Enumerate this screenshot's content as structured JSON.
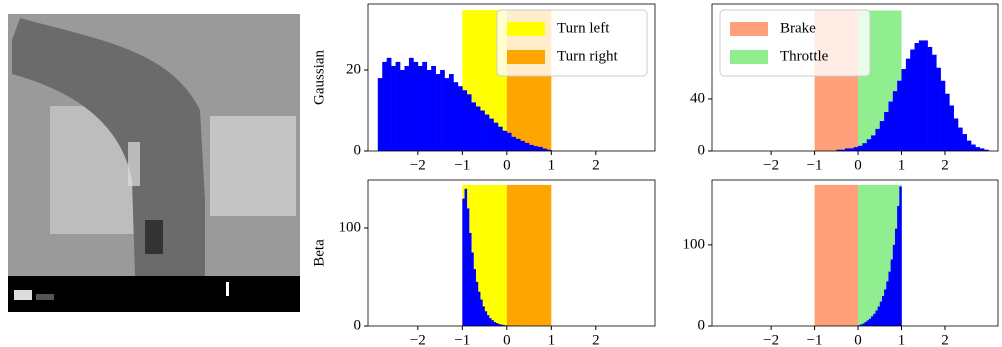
{
  "chart_data": [
    {
      "type": "histogram",
      "ylabel": "Gaussian",
      "color": "#0000ff",
      "legend": "upper right",
      "xlim": [
        -3.12,
        3.33
      ],
      "ylim": [
        0,
        36.3
      ],
      "xticks": [
        {
          "value": -2,
          "label": "−2"
        },
        {
          "value": -1,
          "label": "−1"
        },
        0,
        1,
        2
      ],
      "yticks": [
        0,
        20
      ],
      "spans": [
        {
          "name": "Turn left",
          "color": "#ffff00",
          "span": [
            -1,
            0
          ],
          "height": 34.8
        },
        {
          "name": "Turn right",
          "color": "#ffa500",
          "span": [
            0,
            1
          ],
          "height": 34.8
        }
      ],
      "bins": [
        -2.9,
        -2.8,
        -2.7,
        -2.6,
        -2.5,
        -2.4,
        -2.3,
        -2.2,
        -2.1,
        -2.0,
        -1.9,
        -1.8,
        -1.7,
        -1.6,
        -1.5,
        -1.4,
        -1.3,
        -1.2,
        -1.1,
        -1.0,
        -0.9,
        -0.8,
        -0.7,
        -0.6,
        -0.5,
        -0.4,
        -0.3,
        -0.2,
        -0.1,
        0.0,
        0.1,
        0.2,
        0.3,
        0.4,
        0.5,
        0.6,
        0.7,
        0.8,
        0.9,
        1.0
      ],
      "counts": [
        18,
        22,
        23,
        21,
        22,
        20,
        21,
        23,
        22,
        21,
        22,
        20,
        21,
        19,
        20,
        18,
        19,
        17,
        16,
        15,
        14,
        12,
        11,
        10,
        9,
        8,
        7,
        6,
        5,
        4.5,
        3.5,
        3,
        2.5,
        2,
        1.5,
        1.2,
        1,
        0.6,
        0.3
      ]
    },
    {
      "type": "histogram",
      "color": "#0000ff",
      "legend": "upper left",
      "xlim": [
        -3.36,
        3.22
      ],
      "ylim": [
        0,
        113
      ],
      "xticks": [
        {
          "value": -2,
          "label": "−2"
        },
        {
          "value": -1,
          "label": "−1"
        },
        0,
        1,
        2
      ],
      "yticks": [
        0,
        40
      ],
      "spans": [
        {
          "name": "Brake",
          "color": "#ffa07a",
          "span": [
            -1,
            0
          ],
          "height": 108
        },
        {
          "name": "Throttle",
          "color": "#90ee90",
          "span": [
            0,
            1
          ],
          "height": 108
        }
      ],
      "bins": [
        -0.5,
        -0.4,
        -0.3,
        -0.2,
        -0.1,
        0.0,
        0.1,
        0.2,
        0.3,
        0.4,
        0.5,
        0.6,
        0.7,
        0.8,
        0.9,
        1.0,
        1.1,
        1.2,
        1.3,
        1.4,
        1.5,
        1.6,
        1.7,
        1.8,
        1.9,
        2.0,
        2.1,
        2.2,
        2.3,
        2.4,
        2.5,
        2.6,
        2.7,
        2.8,
        2.9,
        3.0
      ],
      "counts": [
        1,
        1,
        2,
        2,
        3,
        4,
        6,
        9,
        12,
        17,
        23,
        30,
        38,
        46,
        54,
        63,
        71,
        78,
        83,
        85,
        85,
        80,
        74,
        64,
        54,
        44,
        35,
        25,
        18,
        13,
        8,
        5,
        3,
        2,
        1
      ]
    },
    {
      "type": "histogram",
      "ylabel": "Beta",
      "color": "#0000ff",
      "xlim": [
        -3.12,
        3.33
      ],
      "ylim": [
        0,
        149
      ],
      "xticks": [
        {
          "value": -2,
          "label": "−2"
        },
        {
          "value": -1,
          "label": "−1"
        },
        0,
        1,
        2
      ],
      "yticks": [
        0,
        100
      ],
      "spans": [
        {
          "color": "#ffff00",
          "span": [
            -1,
            0
          ],
          "height": 144
        },
        {
          "color": "#ffa500",
          "span": [
            0,
            1
          ],
          "height": 144
        }
      ],
      "bins": [
        -1.0,
        -0.95,
        -0.9,
        -0.85,
        -0.8,
        -0.75,
        -0.7,
        -0.65,
        -0.6,
        -0.55,
        -0.5,
        -0.45,
        -0.4,
        -0.35,
        -0.3,
        -0.25,
        -0.2,
        -0.15,
        -0.1,
        -0.05,
        0.0,
        0.05,
        0.1,
        0.15,
        0.2,
        0.25,
        0.3
      ],
      "counts": [
        130,
        140,
        120,
        95,
        75,
        58,
        45,
        35,
        27,
        20,
        15,
        11,
        8,
        6,
        4,
        3,
        2,
        1.5,
        1,
        0.7,
        0.5,
        0.3,
        0.2,
        0.1,
        0.1,
        0.05
      ]
    },
    {
      "type": "histogram",
      "color": "#0000ff",
      "xlim": [
        -3.36,
        3.22
      ],
      "ylim": [
        0,
        180
      ],
      "xticks": [
        {
          "value": -2,
          "label": "−2"
        },
        {
          "value": -1,
          "label": "−1"
        },
        0,
        1,
        2
      ],
      "yticks": [
        0,
        100
      ],
      "spans": [
        {
          "color": "#ffa07a",
          "span": [
            -1,
            0
          ],
          "height": 174
        },
        {
          "color": "#90ee90",
          "span": [
            0,
            1
          ],
          "height": 174
        }
      ],
      "bins": [
        0.0,
        0.05,
        0.1,
        0.15,
        0.2,
        0.25,
        0.3,
        0.35,
        0.4,
        0.45,
        0.5,
        0.55,
        0.6,
        0.65,
        0.7,
        0.75,
        0.8,
        0.85,
        0.9,
        0.95,
        1.0
      ],
      "counts": [
        1,
        2,
        3,
        5,
        7,
        9,
        12,
        15,
        19,
        24,
        30,
        37,
        45,
        55,
        67,
        82,
        100,
        120,
        148,
        172
      ]
    }
  ]
}
